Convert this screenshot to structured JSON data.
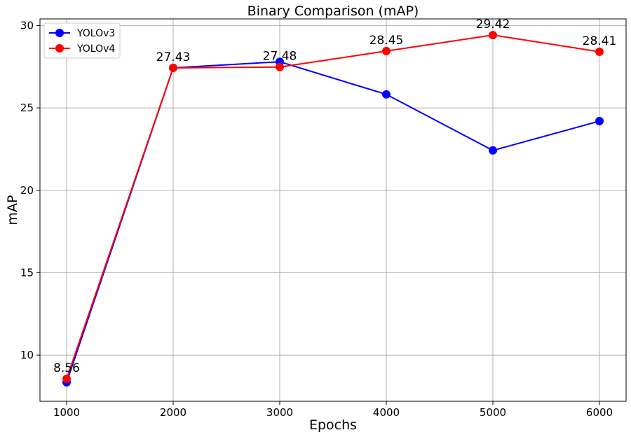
{
  "chart_data": {
    "type": "line",
    "title": "Binary Comparison (mAP)",
    "xlabel": "Epochs",
    "ylabel": "mAP",
    "x": [
      1000,
      2000,
      3000,
      4000,
      5000,
      6000
    ],
    "xticks": [
      "1000",
      "2000",
      "3000",
      "4000",
      "5000",
      "6000"
    ],
    "yticks": [
      "10",
      "15",
      "20",
      "25",
      "30"
    ],
    "xlim": [
      750,
      6250
    ],
    "ylim": [
      7.2,
      30.4
    ],
    "grid": true,
    "legend_position": "top-left",
    "series": [
      {
        "name": "YOLOv3",
        "color": "#0000ff",
        "values": [
          8.35,
          27.43,
          27.8,
          25.82,
          22.42,
          24.2
        ]
      },
      {
        "name": "YOLOv4",
        "color": "#ff0000",
        "values": [
          8.56,
          27.43,
          27.48,
          28.45,
          29.42,
          28.41
        ]
      }
    ],
    "data_labels": [
      {
        "x": 1000,
        "y": 8.56,
        "text": "8.56"
      },
      {
        "x": 2000,
        "y": 27.43,
        "text": "27.43"
      },
      {
        "x": 3000,
        "y": 27.48,
        "text": "27.48"
      },
      {
        "x": 4000,
        "y": 28.45,
        "text": "28.45"
      },
      {
        "x": 5000,
        "y": 29.42,
        "text": "29.42"
      },
      {
        "x": 6000,
        "y": 28.41,
        "text": "28.41"
      }
    ]
  }
}
